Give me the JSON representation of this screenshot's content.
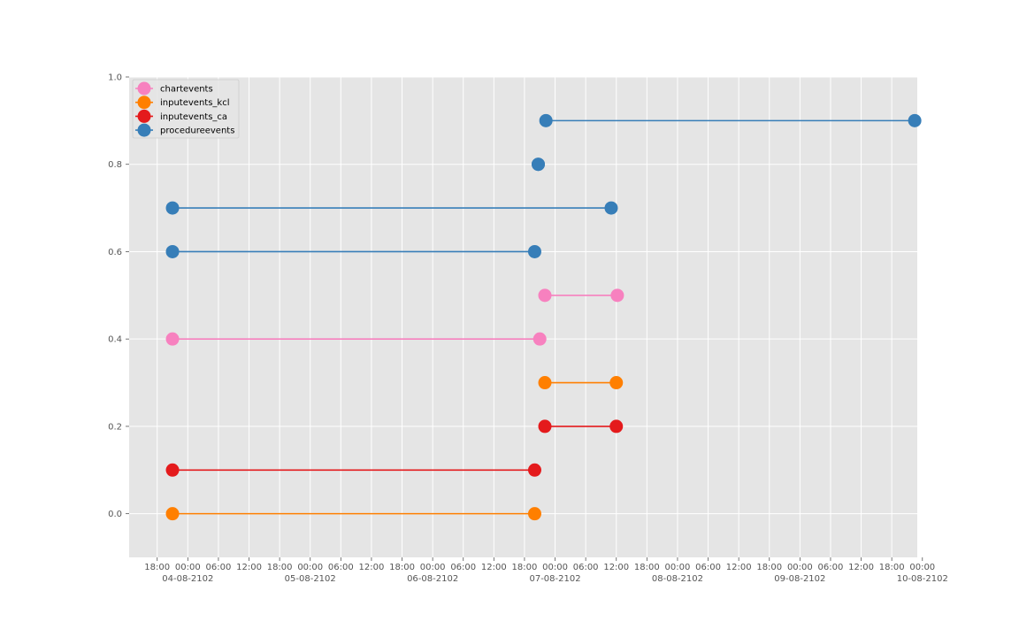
{
  "chart_data": {
    "type": "line",
    "title": "",
    "xlabel": "",
    "ylabel": "",
    "grid": true,
    "legend_position": "top-left",
    "xlim": [
      -11.5,
      143
    ],
    "ylim": [
      -0.1,
      1.0
    ],
    "x_unit": "hours since 04-08-2102 00:00",
    "x_ticks": [
      {
        "x": -6,
        "label": "18:00"
      },
      {
        "x": 0,
        "label": "00:00"
      },
      {
        "x": 6,
        "label": "06:00"
      },
      {
        "x": 12,
        "label": "12:00"
      },
      {
        "x": 18,
        "label": "18:00"
      },
      {
        "x": 24,
        "label": "00:00"
      },
      {
        "x": 30,
        "label": "06:00"
      },
      {
        "x": 36,
        "label": "12:00"
      },
      {
        "x": 42,
        "label": "18:00"
      },
      {
        "x": 48,
        "label": "00:00"
      },
      {
        "x": 54,
        "label": "06:00"
      },
      {
        "x": 60,
        "label": "12:00"
      },
      {
        "x": 66,
        "label": "18:00"
      },
      {
        "x": 72,
        "label": "00:00"
      },
      {
        "x": 78,
        "label": "06:00"
      },
      {
        "x": 84,
        "label": "12:00"
      },
      {
        "x": 90,
        "label": "18:00"
      },
      {
        "x": 96,
        "label": "00:00"
      },
      {
        "x": 102,
        "label": "06:00"
      },
      {
        "x": 108,
        "label": "12:00"
      },
      {
        "x": 114,
        "label": "18:00"
      },
      {
        "x": 120,
        "label": "00:00"
      },
      {
        "x": 126,
        "label": "06:00"
      },
      {
        "x": 132,
        "label": "12:00"
      },
      {
        "x": 138,
        "label": "18:00"
      },
      {
        "x": 144,
        "label": "00:00"
      }
    ],
    "date_labels": [
      {
        "x": 0,
        "label": "04-08-2102"
      },
      {
        "x": 24,
        "label": "05-08-2102"
      },
      {
        "x": 48,
        "label": "06-08-2102"
      },
      {
        "x": 72,
        "label": "07-08-2102"
      },
      {
        "x": 96,
        "label": "08-08-2102"
      },
      {
        "x": 120,
        "label": "09-08-2102"
      },
      {
        "x": 144,
        "label": "10-08-2102"
      }
    ],
    "y_ticks": [
      {
        "y": 0.0,
        "label": "0.0"
      },
      {
        "y": 0.2,
        "label": "0.2"
      },
      {
        "y": 0.4,
        "label": "0.4"
      },
      {
        "y": 0.6,
        "label": "0.6"
      },
      {
        "y": 0.8,
        "label": "0.8"
      },
      {
        "y": 1.0,
        "label": "1.0"
      }
    ],
    "series": [
      {
        "name": "chartevents",
        "color": "#f781bf",
        "segments": [
          {
            "y": 0.4,
            "x": [
              -3,
              69
            ]
          },
          {
            "y": 0.5,
            "x": [
              70,
              84.2
            ]
          }
        ]
      },
      {
        "name": "inputevents_kcl",
        "color": "#ff7f00",
        "segments": [
          {
            "y": 0.0,
            "x": [
              -3,
              68
            ]
          },
          {
            "y": 0.3,
            "x": [
              70,
              84
            ]
          }
        ]
      },
      {
        "name": "inputevents_ca",
        "color": "#e41a1c",
        "segments": [
          {
            "y": 0.1,
            "x": [
              -3,
              68
            ]
          },
          {
            "y": 0.2,
            "x": [
              70,
              84
            ]
          }
        ]
      },
      {
        "name": "procedureevents",
        "color": "#377eb8",
        "segments": [
          {
            "y": 0.6,
            "x": [
              -3,
              68
            ]
          },
          {
            "y": 0.7,
            "x": [
              -3,
              83
            ]
          },
          {
            "y": 0.8,
            "x": [
              68.7,
              68.7
            ]
          },
          {
            "y": 0.9,
            "x": [
              70.2,
              142.5
            ]
          }
        ]
      }
    ]
  }
}
